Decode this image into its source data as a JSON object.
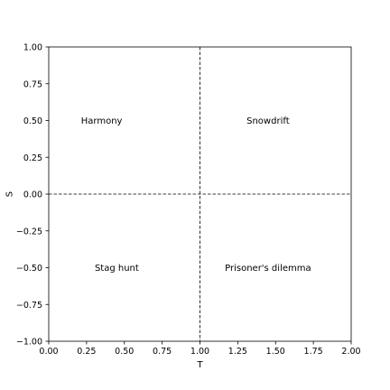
{
  "chart_data": {
    "type": "scatter",
    "title": "",
    "xlabel": "T",
    "ylabel": "S",
    "xlim": [
      0,
      2
    ],
    "ylim": [
      -1,
      1
    ],
    "grid": false,
    "xticks": [
      0.0,
      0.25,
      0.5,
      0.75,
      1.0,
      1.25,
      1.5,
      1.75,
      2.0
    ],
    "yticks": [
      -1.0,
      -0.75,
      -0.5,
      -0.25,
      0.0,
      0.25,
      0.5,
      0.75,
      1.0
    ],
    "xtick_labels": [
      "0.00",
      "0.25",
      "0.50",
      "0.75",
      "1.00",
      "1.25",
      "1.50",
      "1.75",
      "2.00"
    ],
    "ytick_labels": [
      "−1.00",
      "−0.75",
      "−0.50",
      "−0.25",
      "0.00",
      "0.25",
      "0.50",
      "0.75",
      "1.00"
    ],
    "reference_lines": [
      {
        "orientation": "vertical",
        "value": 1.0,
        "style": "dashed"
      },
      {
        "orientation": "horizontal",
        "value": 0.0,
        "style": "dashed"
      }
    ],
    "annotations": [
      {
        "text": "Harmony",
        "x": 0.35,
        "y": 0.5
      },
      {
        "text": "Snowdrift",
        "x": 1.45,
        "y": 0.5
      },
      {
        "text": "Stag hunt",
        "x": 0.45,
        "y": -0.5
      },
      {
        "text": "Prisoner's dilemma",
        "x": 1.45,
        "y": -0.5
      }
    ]
  }
}
